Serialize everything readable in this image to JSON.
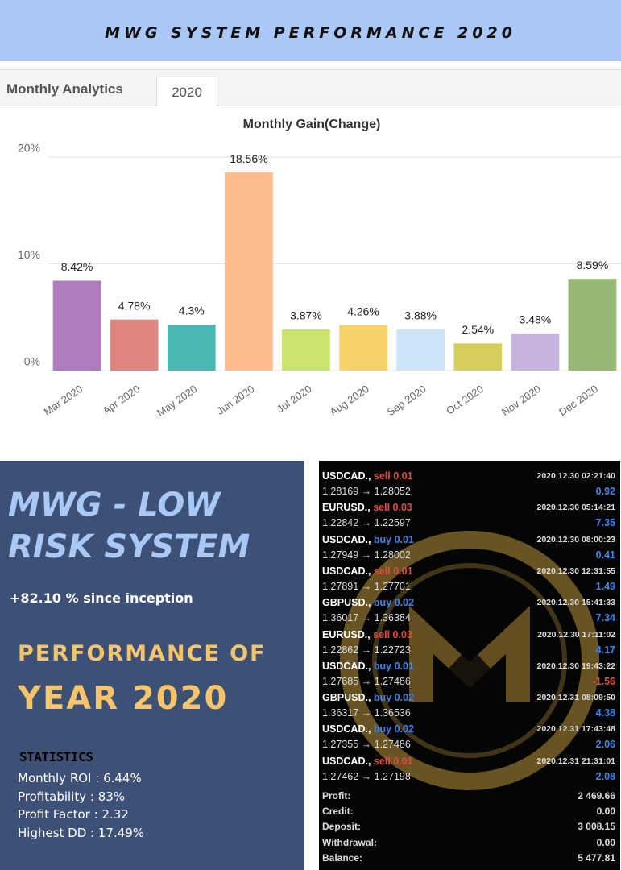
{
  "header": {
    "title": "MWG SYSTEM PERFORMANCE 2020"
  },
  "tabs": {
    "section": "Monthly Analytics",
    "active": "2020"
  },
  "chart_data": {
    "type": "bar",
    "title": "Monthly Gain(Change)",
    "categories": [
      "Mar 2020",
      "Apr 2020",
      "May 2020",
      "Jun 2020",
      "Jul 2020",
      "Aug 2020",
      "Sep 2020",
      "Oct 2020",
      "Nov 2020",
      "Dec 2020"
    ],
    "values": [
      8.42,
      4.78,
      4.3,
      18.56,
      3.87,
      4.26,
      3.88,
      2.54,
      3.48,
      8.59
    ],
    "value_labels": [
      "8.42%",
      "4.78%",
      "4.3%",
      "18.56%",
      "3.87%",
      "4.26%",
      "3.88%",
      "2.54%",
      "3.48%",
      "8.59%"
    ],
    "colors": [
      "#b07cc0",
      "#e0847e",
      "#4cb8b4",
      "#fdbb8e",
      "#c9e36c",
      "#f5d36a",
      "#cde5f8",
      "#d6cf5c",
      "#c6b3e0",
      "#97b775"
    ],
    "ylim": [
      0,
      20
    ],
    "yticks": [
      {
        "value": 0,
        "label": "0%"
      },
      {
        "value": 10,
        "label": "10%"
      },
      {
        "value": 20,
        "label": "20%"
      }
    ],
    "grid": true
  },
  "panel": {
    "title_lines": [
      "MWG - LOW",
      "RISK SYSTEM"
    ],
    "since": "+82.10 % since inception",
    "performance": "PERFORMANCE OF",
    "year": "YEAR 2020",
    "stats_title": "STATISTICS",
    "stats": [
      "Monthly ROI : 6.44%",
      "Profitability : 83%",
      "Profit Factor : 2.32",
      "Highest DD : 17.49%"
    ]
  },
  "trades": [
    {
      "symbol": "USDCAD.,",
      "order": "sell 0.01",
      "time": "2020.12.30 02:21:40",
      "prices": "1.28169 → 1.28052",
      "profit": "0.92"
    },
    {
      "symbol": "EURUSD.,",
      "order": "sell 0.03",
      "time": "2020.12.30 05:14:21",
      "prices": "1.22842 → 1.22597",
      "profit": "7.35"
    },
    {
      "symbol": "USDCAD.,",
      "order": "buy 0.01",
      "time": "2020.12.30 08:00:23",
      "prices": "1.27949 → 1.28002",
      "profit": "0.41"
    },
    {
      "symbol": "USDCAD.,",
      "order": "sell 0.01",
      "time": "2020.12.30 12:31:55",
      "prices": "1.27891 → 1.27701",
      "profit": "1.49"
    },
    {
      "symbol": "GBPUSD.,",
      "order": "buy 0.02",
      "time": "2020.12.30 15:41:33",
      "prices": "1.36017 → 1.36384",
      "profit": "7.34"
    },
    {
      "symbol": "EURUSD.,",
      "order": "sell 0.03",
      "time": "2020.12.30 17:11:02",
      "prices": "1.22862 → 1.22723",
      "profit": "4.17"
    },
    {
      "symbol": "USDCAD.,",
      "order": "buy 0.01",
      "time": "2020.12.30 19:43:22",
      "prices": "1.27685 → 1.27486",
      "profit": "-1.56"
    },
    {
      "symbol": "GBPUSD.,",
      "order": "buy 0.02",
      "time": "2020.12.31 08:09:50",
      "prices": "1.36317 → 1.36536",
      "profit": "4.38"
    },
    {
      "symbol": "USDCAD.,",
      "order": "buy 0.02",
      "time": "2020.12.31 17:43:48",
      "prices": "1.27355 → 1.27486",
      "profit": "2.06"
    },
    {
      "symbol": "USDCAD.,",
      "order": "sell 0.01",
      "time": "2020.12.31 21:31:01",
      "prices": "1.27462 → 1.27198",
      "profit": "2.08"
    }
  ],
  "summary": [
    {
      "label": "Profit:",
      "value": "2 469.66"
    },
    {
      "label": "Credit:",
      "value": "0.00"
    },
    {
      "label": "Deposit:",
      "value": "3 008.15"
    },
    {
      "label": "Withdrawal:",
      "value": "0.00"
    },
    {
      "label": "Balance:",
      "value": "5 477.81"
    }
  ]
}
